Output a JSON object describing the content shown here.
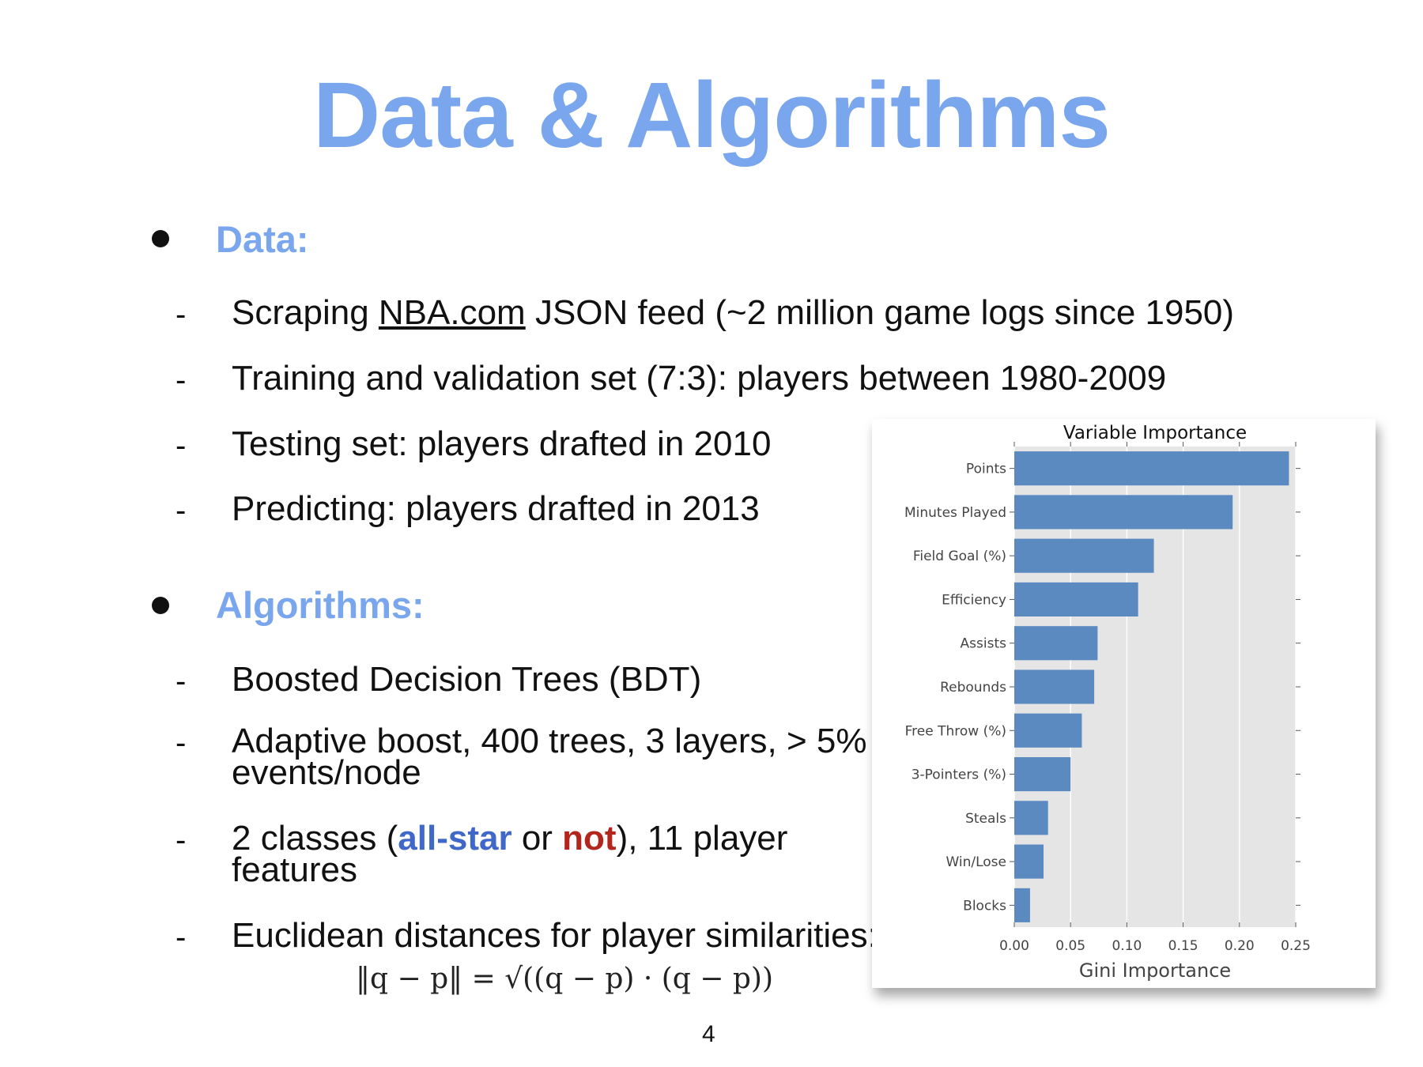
{
  "slide": {
    "title": "Data & Algorithms",
    "page_number": "4",
    "sections": [
      {
        "heading": "Data:"
      },
      {
        "heading": "Algorithms:"
      }
    ],
    "dash": "-",
    "data_items": {
      "scraping_prefix": "Scraping ",
      "scraping_link": "NBA.com",
      "scraping_suffix": " JSON feed (~2 million game logs since 1950)",
      "training": "Training and validation set (7:3): players between 1980-2009",
      "testing": "Testing set: players drafted in 2010",
      "predicting": "Predicting: players drafted in 2013"
    },
    "algo_items": {
      "bdt": "Boosted Decision Trees (BDT)",
      "adaptive_line1": "Adaptive boost, 400 trees, 3 layers, > 5%",
      "adaptive_line2": "events/node",
      "classes_prefix": "2 classes (",
      "classes_allstar": "all-star",
      "classes_or": " or ",
      "classes_not": "not",
      "classes_suffix": "), 11 player",
      "classes_line2": "features",
      "euclid": "Euclidean distances for player similarities:"
    },
    "formula": "‖q − p‖ = √((q − p) · (q − p))"
  },
  "chart_data": {
    "type": "bar",
    "orientation": "horizontal",
    "title": "Variable Importance",
    "xlabel": "Gini Importance",
    "ylabel": "",
    "xlim": [
      0,
      0.25
    ],
    "xticks": [
      "0.00",
      "0.05",
      "0.10",
      "0.15",
      "0.20",
      "0.25"
    ],
    "grid": true,
    "bar_color": "#5b8ac1",
    "background_color": "#e5e5e5",
    "categories": [
      "Points",
      "Minutes Played",
      "Field Goal (%)",
      "Efficiency",
      "Assists",
      "Rebounds",
      "Free Throw (%)",
      "3-Pointers (%)",
      "Steals",
      "Win/Lose",
      "Blocks"
    ],
    "values": [
      0.244,
      0.194,
      0.124,
      0.11,
      0.074,
      0.071,
      0.06,
      0.05,
      0.03,
      0.026,
      0.014
    ]
  }
}
